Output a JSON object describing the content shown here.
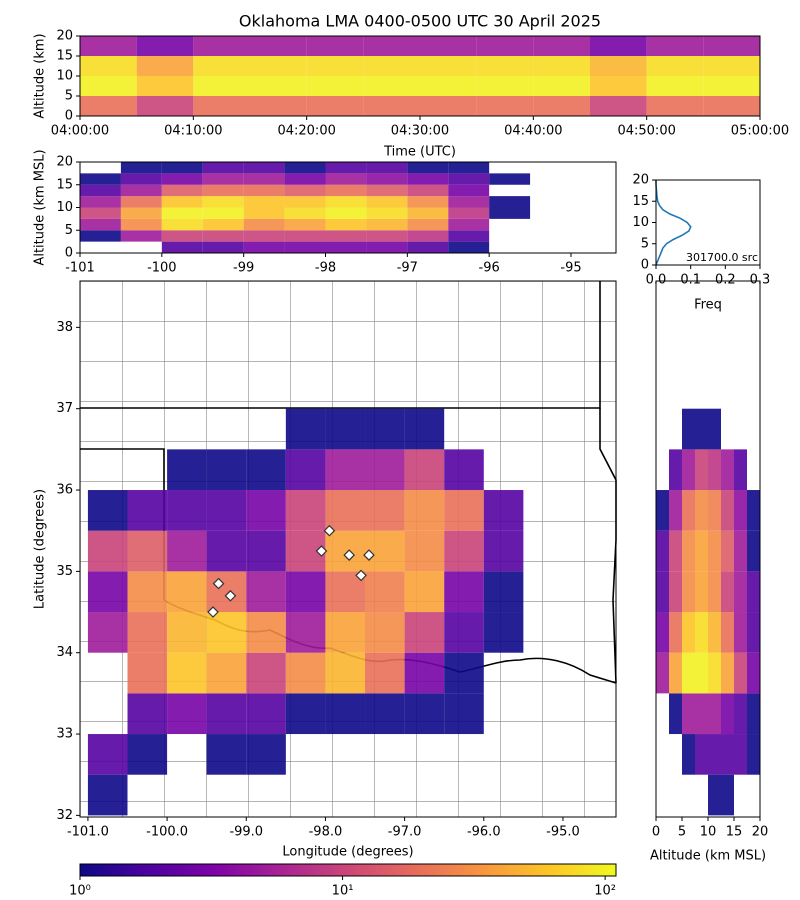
{
  "chart_data": [
    {
      "type": "heatmap",
      "title": "Oklahoma LMA 0400-0500 UTC 30 April 2025",
      "xlabel": "Time (UTC)",
      "ylabel": "Altitude (km)",
      "xlim": [
        0,
        60
      ],
      "ylim": [
        0,
        20
      ],
      "xticks": [
        {
          "value": 0,
          "label": "04:00:00"
        },
        {
          "value": 10,
          "label": "04:10:00"
        },
        {
          "value": 20,
          "label": "04:20:00"
        },
        {
          "value": 30,
          "label": "04:30:00"
        },
        {
          "value": 40,
          "label": "04:40:00"
        },
        {
          "value": 50,
          "label": "04:50:00"
        },
        {
          "value": 60,
          "label": "05:00:00"
        }
      ],
      "yticks": [
        0,
        5,
        10,
        15,
        20
      ],
      "x_bins": [
        0,
        5,
        10,
        15,
        20,
        25,
        30,
        35,
        40,
        45,
        50,
        55,
        60
      ],
      "y_bins": [
        0,
        5,
        10,
        15,
        20
      ],
      "counts": [
        [
          20,
          10,
          20,
          20,
          20,
          20,
          20,
          20,
          20,
          10,
          20,
          20
        ],
        [
          100,
          60,
          100,
          100,
          100,
          100,
          100,
          100,
          100,
          60,
          100,
          100
        ],
        [
          80,
          40,
          80,
          80,
          80,
          80,
          80,
          80,
          80,
          50,
          80,
          80
        ],
        [
          5,
          3,
          5,
          5,
          5,
          5,
          5,
          5,
          5,
          3,
          5,
          5
        ]
      ]
    },
    {
      "type": "heatmap",
      "ylabel": "Altitude (km MSL)",
      "xlim": [
        -101,
        -94.45
      ],
      "ylim": [
        0,
        20
      ],
      "xticks": [
        -101,
        -100,
        -99,
        -98,
        -97,
        -96,
        -95
      ],
      "yticks": [
        0,
        5,
        10,
        15,
        20
      ],
      "x_bins": [
        -101,
        -100.5,
        -100,
        -99.5,
        -99,
        -98.5,
        -98,
        -97.5,
        -97,
        -96.5,
        -96,
        -95.5,
        -95,
        -94.5
      ],
      "y_bins": [
        0,
        2.5,
        5,
        7.5,
        10,
        12.5,
        15,
        17.5,
        20
      ],
      "counts": [
        [
          null,
          null,
          2,
          2,
          3,
          3,
          3,
          3,
          2,
          1,
          null,
          null,
          null
        ],
        [
          1,
          5,
          10,
          10,
          10,
          10,
          10,
          10,
          8,
          2,
          null,
          null,
          null
        ],
        [
          5,
          30,
          80,
          60,
          30,
          40,
          60,
          50,
          30,
          5,
          null,
          null,
          null
        ],
        [
          10,
          40,
          100,
          100,
          60,
          80,
          100,
          80,
          50,
          8,
          1,
          null,
          null
        ],
        [
          5,
          20,
          60,
          80,
          60,
          60,
          80,
          60,
          30,
          5,
          1,
          null,
          null
        ],
        [
          2,
          5,
          15,
          20,
          20,
          15,
          20,
          15,
          10,
          3,
          null,
          null,
          null
        ],
        [
          1,
          2,
          3,
          5,
          5,
          3,
          5,
          4,
          3,
          2,
          1,
          null,
          null
        ],
        [
          null,
          1,
          1,
          2,
          2,
          1,
          2,
          2,
          1,
          1,
          null,
          null,
          null
        ]
      ]
    },
    {
      "type": "line",
      "xlabel": "Freq",
      "annotation": "301700.0 src",
      "color": "#1f77b4",
      "xlim": [
        0,
        0.3
      ],
      "ylim": [
        0,
        20
      ],
      "xticks": [
        {
          "value": 0,
          "label": "0.0"
        },
        {
          "value": 0.1,
          "label": "0.1"
        },
        {
          "value": 0.2,
          "label": "0.2"
        },
        {
          "value": 0.3,
          "label": "0.3"
        }
      ],
      "yticks": [
        0,
        5,
        10,
        15,
        20
      ],
      "x": [
        0.0,
        0.005,
        0.01,
        0.015,
        0.02,
        0.03,
        0.05,
        0.075,
        0.095,
        0.1,
        0.09,
        0.07,
        0.04,
        0.02,
        0.01,
        0.005,
        0.003,
        0.002,
        0.001,
        0.0,
        0.0
      ],
      "y": [
        0,
        1,
        2,
        3,
        4,
        5,
        6,
        7,
        8,
        9,
        10,
        11,
        12,
        13,
        14,
        15,
        16,
        17,
        18,
        19,
        20
      ]
    },
    {
      "type": "heatmap",
      "xlabel": "Longitude (degrees)",
      "ylabel": "Latitude (degrees)",
      "xlim": [
        -101.1,
        -94.33
      ],
      "ylim": [
        31.98,
        38.57
      ],
      "xticks": [
        {
          "value": -101,
          "label": "-101.0"
        },
        {
          "value": -100,
          "label": "-100.0"
        },
        {
          "value": -99,
          "label": "-99.0"
        },
        {
          "value": -98,
          "label": "-98.0"
        },
        {
          "value": -97,
          "label": "-97.0"
        },
        {
          "value": -96,
          "label": "-96.0"
        },
        {
          "value": -95,
          "label": "-95.0"
        }
      ],
      "yticks": [
        32,
        33,
        34,
        35,
        36,
        37,
        38
      ],
      "x_bins": [
        -101,
        -100.5,
        -100,
        -99.5,
        -99,
        -98.5,
        -98,
        -97.5,
        -97,
        -96.5,
        -96,
        -95.5,
        -95,
        -94.5
      ],
      "y_bins": [
        32,
        32.5,
        33,
        33.5,
        34,
        34.5,
        35,
        35.5,
        36,
        36.5,
        37,
        37.5,
        38,
        38.5
      ],
      "counts": [
        [
          1,
          null,
          null,
          null,
          null,
          null,
          null,
          null,
          null,
          null,
          null,
          null,
          null
        ],
        [
          2,
          1,
          null,
          1,
          1,
          null,
          null,
          null,
          null,
          null,
          null,
          null,
          null
        ],
        [
          null,
          2,
          3,
          2,
          2,
          1,
          1,
          1,
          1,
          1,
          null,
          null,
          null
        ],
        [
          null,
          20,
          60,
          40,
          10,
          30,
          50,
          20,
          3,
          1,
          null,
          null,
          null
        ],
        [
          5,
          20,
          50,
          60,
          30,
          5,
          40,
          30,
          10,
          2,
          1,
          null,
          null
        ],
        [
          3,
          30,
          40,
          20,
          5,
          3,
          20,
          25,
          40,
          3,
          1,
          null,
          null
        ],
        [
          10,
          15,
          5,
          2,
          2,
          10,
          40,
          40,
          30,
          10,
          2,
          null,
          null
        ],
        [
          1,
          2,
          2,
          2,
          3,
          10,
          20,
          20,
          30,
          20,
          2,
          null,
          null
        ],
        [
          null,
          null,
          1,
          1,
          1,
          2,
          5,
          5,
          10,
          2,
          null,
          null,
          null
        ],
        [
          null,
          null,
          null,
          null,
          null,
          1,
          1,
          1,
          1,
          null,
          null,
          null,
          null
        ],
        [
          null,
          null,
          null,
          null,
          null,
          null,
          null,
          null,
          null,
          null,
          null,
          null,
          null
        ],
        [
          null,
          null,
          null,
          null,
          null,
          null,
          null,
          null,
          null,
          null,
          null,
          null,
          null
        ],
        [
          null,
          null,
          null,
          null,
          null,
          null,
          null,
          null,
          null,
          null,
          null,
          null,
          null
        ]
      ],
      "stations": {
        "lon": [
          -99.35,
          -99.42,
          -99.2,
          -98.05,
          -97.95,
          -97.7,
          -97.45,
          -97.55
        ],
        "lat": [
          34.85,
          34.5,
          34.7,
          35.25,
          35.5,
          35.2,
          35.2,
          34.95
        ]
      }
    },
    {
      "type": "heatmap",
      "xlabel": "Altitude (km MSL)",
      "xlim": [
        0,
        20
      ],
      "ylim": [
        31.98,
        38.57
      ],
      "xticks": [
        0,
        5,
        10,
        15,
        20
      ],
      "x_bins": [
        0,
        2.5,
        5,
        7.5,
        10,
        12.5,
        15,
        17.5,
        20
      ],
      "y_bins": [
        32,
        32.5,
        33,
        33.5,
        34,
        34.5,
        35,
        35.5,
        36,
        36.5,
        37,
        37.5,
        38,
        38.5
      ],
      "counts": [
        [
          null,
          null,
          null,
          null,
          1,
          1,
          null,
          null
        ],
        [
          null,
          null,
          1,
          2,
          2,
          2,
          2,
          1
        ],
        [
          null,
          1,
          5,
          5,
          5,
          3,
          2,
          1
        ],
        [
          5,
          40,
          100,
          100,
          80,
          40,
          10,
          3
        ],
        [
          3,
          20,
          60,
          80,
          50,
          20,
          5,
          2
        ],
        [
          2,
          10,
          30,
          40,
          30,
          10,
          5,
          2
        ],
        [
          2,
          10,
          30,
          40,
          30,
          15,
          5,
          1
        ],
        [
          1,
          5,
          20,
          30,
          25,
          10,
          4,
          1
        ],
        [
          null,
          2,
          5,
          10,
          8,
          5,
          2,
          null
        ],
        [
          null,
          null,
          1,
          1,
          1,
          null,
          null,
          null
        ],
        [
          null,
          null,
          null,
          null,
          null,
          null,
          null,
          null
        ],
        [
          null,
          null,
          null,
          null,
          null,
          null,
          null,
          null
        ],
        [
          null,
          null,
          null,
          null,
          null,
          null,
          null,
          null
        ]
      ]
    },
    {
      "type": "colorbar",
      "colormap": "plasma",
      "log_scale": true,
      "xlim": [
        1,
        110
      ],
      "xticks": [
        {
          "value": 1,
          "label": "10⁰"
        },
        {
          "value": 10,
          "label": "10¹"
        },
        {
          "value": 100,
          "label": "10²"
        }
      ]
    }
  ]
}
